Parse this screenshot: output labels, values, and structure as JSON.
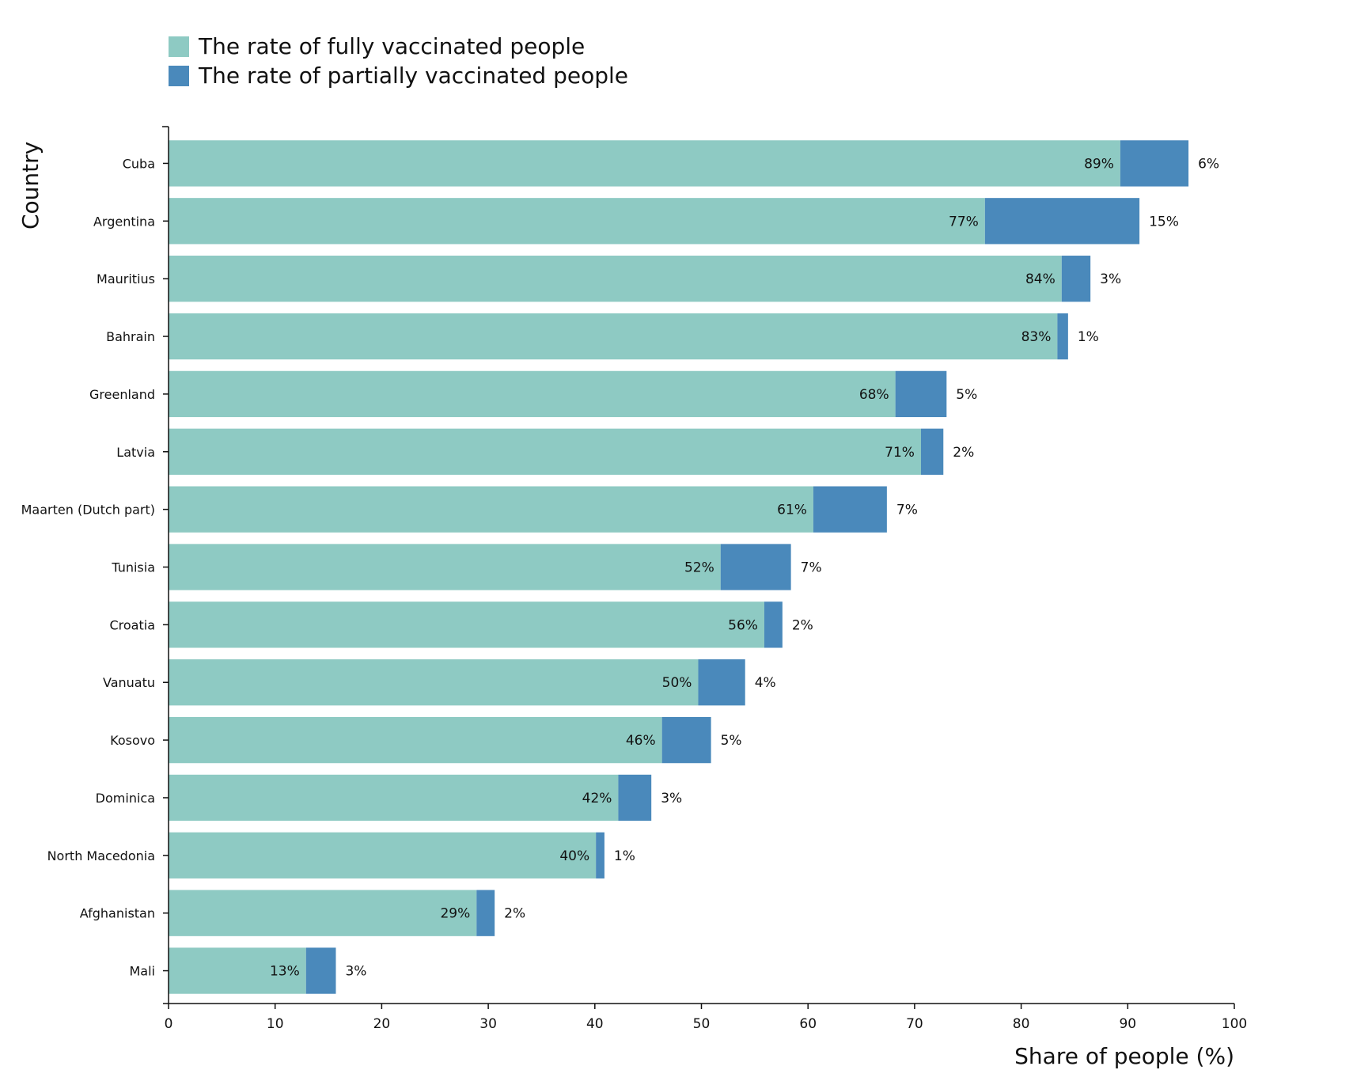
{
  "chart_data": {
    "type": "bar",
    "orientation": "horizontal",
    "stacked": true,
    "xlabel": "Share of people (%)",
    "ylabel": "Country",
    "xlim": [
      0,
      100
    ],
    "xticks": [
      0,
      10,
      20,
      30,
      40,
      50,
      60,
      70,
      80,
      90,
      100
    ],
    "legend_position": "top-left",
    "grid": false,
    "categories": [
      "Cuba",
      "Argentina",
      "Mauritius",
      "Bahrain",
      "Greenland",
      "Latvia",
      "Maarten (Dutch part)",
      "Tunisia",
      "Croatia",
      "Vanuatu",
      "Kosovo",
      "Dominica",
      "North Macedonia",
      "Afghanistan",
      "Mali"
    ],
    "series": [
      {
        "name": "The rate of fully vaccinated people",
        "color": "#8ecac3",
        "values": [
          89.3,
          76.6,
          83.8,
          83.4,
          68.2,
          70.6,
          60.5,
          51.8,
          55.9,
          49.7,
          46.3,
          42.2,
          40.1,
          28.9,
          12.9
        ],
        "labels": [
          "89%",
          "77%",
          "84%",
          "83%",
          "68%",
          "71%",
          "61%",
          "52%",
          "56%",
          "50%",
          "46%",
          "42%",
          "40%",
          "29%",
          "13%"
        ]
      },
      {
        "name": "The rate of partially vaccinated people",
        "color": "#4a89bb",
        "values": [
          6.4,
          14.5,
          2.7,
          1.0,
          4.8,
          2.1,
          6.9,
          6.6,
          1.7,
          4.4,
          4.6,
          3.1,
          0.8,
          1.7,
          2.8
        ],
        "labels": [
          "6%",
          "15%",
          "3%",
          "1%",
          "5%",
          "2%",
          "7%",
          "7%",
          "2%",
          "4%",
          "5%",
          "3%",
          "1%",
          "2%",
          "3%"
        ]
      }
    ]
  }
}
